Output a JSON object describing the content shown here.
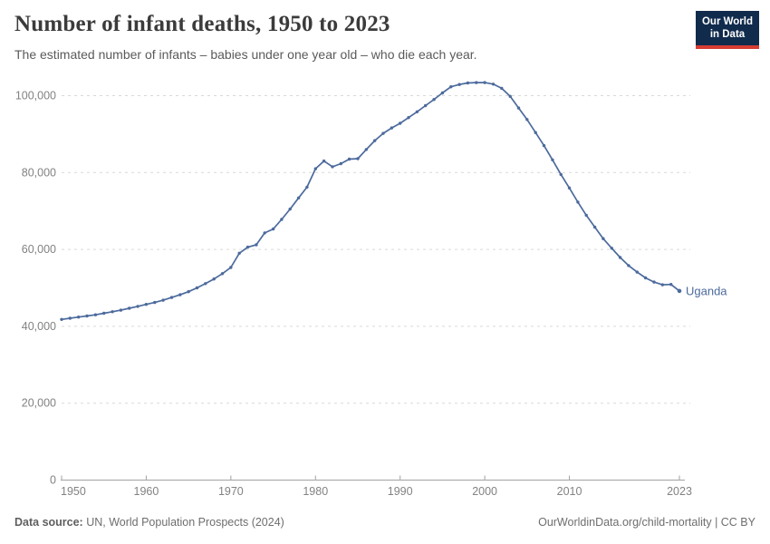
{
  "header": {
    "title": "Number of infant deaths, 1950 to 2023",
    "subtitle": "The estimated number of infants – babies under one year old – who die each year.",
    "logo": {
      "line1": "Our World",
      "line2": "in Data"
    }
  },
  "chart_data": {
    "type": "line",
    "title": "Number of infant deaths, 1950 to 2023",
    "xlabel": "",
    "ylabel": "",
    "grid": "horizontal-dashed",
    "legend_position": "end-of-line label",
    "ylim": [
      0,
      100000
    ],
    "x_range": [
      1950,
      2023
    ],
    "x_ticks": [
      1950,
      1960,
      1970,
      1980,
      1990,
      2000,
      2010,
      2023
    ],
    "y_ticks": [
      0,
      20000,
      40000,
      60000,
      80000,
      100000
    ],
    "series": [
      {
        "name": "Uganda",
        "color": "#4C6A9C",
        "x": [
          1950,
          1951,
          1952,
          1953,
          1954,
          1955,
          1956,
          1957,
          1958,
          1959,
          1960,
          1961,
          1962,
          1963,
          1964,
          1965,
          1966,
          1967,
          1968,
          1969,
          1970,
          1971,
          1972,
          1973,
          1974,
          1975,
          1976,
          1977,
          1978,
          1979,
          1980,
          1981,
          1982,
          1983,
          1984,
          1985,
          1986,
          1987,
          1988,
          1989,
          1990,
          1991,
          1992,
          1993,
          1994,
          1995,
          1996,
          1997,
          1998,
          1999,
          2000,
          2001,
          2002,
          2003,
          2004,
          2005,
          2006,
          2007,
          2008,
          2009,
          2010,
          2011,
          2012,
          2013,
          2014,
          2015,
          2016,
          2017,
          2018,
          2019,
          2020,
          2021,
          2022,
          2023
        ],
        "values": [
          41800,
          42100,
          42400,
          42700,
          43000,
          43400,
          43800,
          44200,
          44700,
          45200,
          45700,
          46200,
          46800,
          47500,
          48200,
          49000,
          50000,
          51100,
          52300,
          53700,
          55300,
          59000,
          60600,
          61200,
          64300,
          65300,
          67800,
          70500,
          73400,
          76200,
          81000,
          83000,
          81500,
          82300,
          83500,
          83600,
          86000,
          88300,
          90200,
          91600,
          92800,
          94300,
          95800,
          97400,
          99000,
          100700,
          102300,
          102900,
          103300,
          103400,
          103400,
          103000,
          101900,
          99800,
          96800,
          93800,
          90400,
          87000,
          83300,
          79500,
          76000,
          72300,
          68900,
          65800,
          62800,
          60300,
          57900,
          55800,
          54100,
          52600,
          51500,
          50800,
          50900,
          49200
        ]
      }
    ]
  },
  "footer": {
    "source_label": "Data source:",
    "source_text": " UN, World Population Prospects (2024)",
    "link_text": "OurWorldinData.org/child-mortality | CC BY"
  },
  "colors": {
    "line": "#4C6A9C",
    "title_text": "#3b3b3b",
    "subtitle_text": "#5a5a5a",
    "tick_text": "#828282",
    "gridline": "#d9d9d9",
    "axis": "#a3a3a3",
    "logo_bg": "#112B4D",
    "logo_bar": "#D73C32"
  }
}
